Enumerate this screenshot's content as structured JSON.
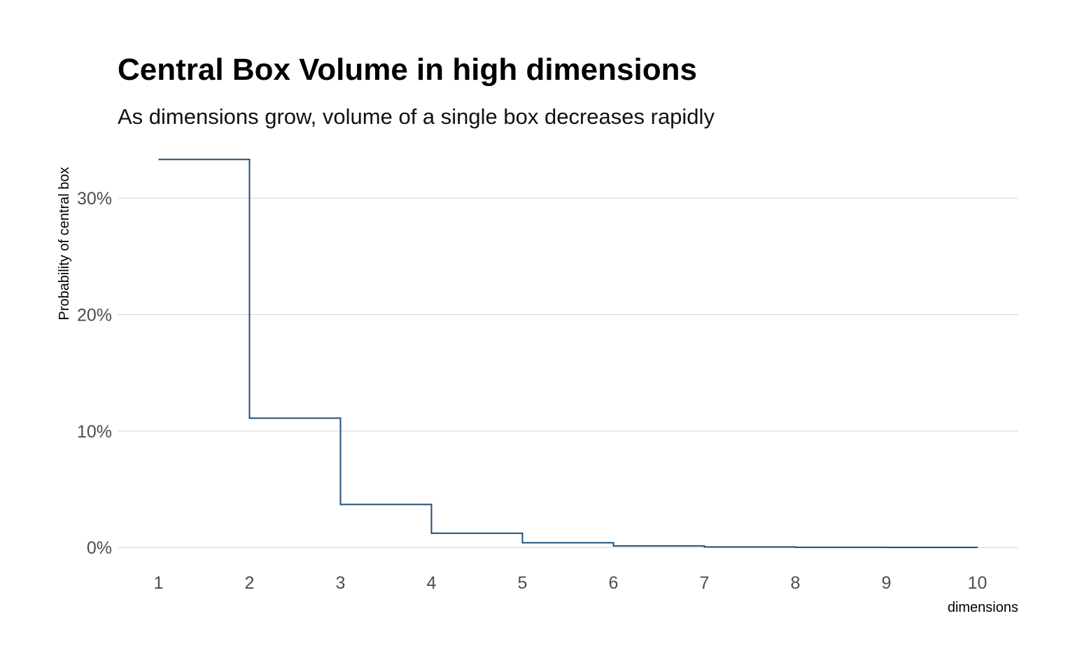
{
  "chart_data": {
    "type": "line",
    "step": "hv",
    "title": "Central Box Volume in high dimensions",
    "subtitle": "As dimensions grow, volume of a single box decreases rapidly",
    "xlabel": "dimensions",
    "ylabel": "Probability of central box",
    "x": [
      1,
      2,
      3,
      4,
      5,
      6,
      7,
      8,
      9,
      10
    ],
    "series": [
      {
        "values": [
          0.3333,
          0.1111,
          0.037,
          0.0123,
          0.0041,
          0.0014,
          0.0005,
          0.0002,
          0.0001,
          0.0
        ]
      }
    ],
    "x_ticks": [
      "1",
      "2",
      "3",
      "4",
      "5",
      "6",
      "7",
      "8",
      "9",
      "10"
    ],
    "y_ticks": [
      {
        "value": 0.0,
        "label": "0%"
      },
      {
        "value": 0.1,
        "label": "10%"
      },
      {
        "value": 0.2,
        "label": "20%"
      },
      {
        "value": 0.3,
        "label": "30%"
      }
    ],
    "xlim": [
      0.55,
      10.45
    ],
    "ylim": [
      -0.0167,
      0.35
    ],
    "grid": "horizontal-major",
    "line_color": "#1f4e79",
    "grid_color": "#d4d4d4"
  }
}
